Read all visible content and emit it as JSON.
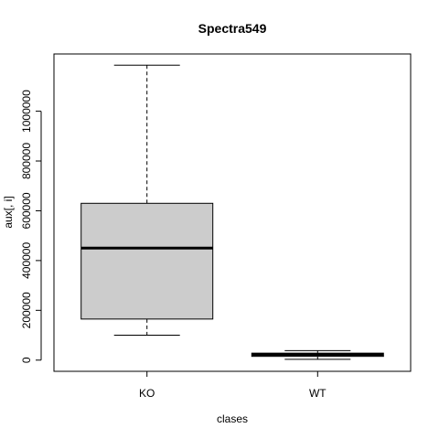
{
  "chart_data": {
    "type": "boxplot",
    "title": "Spectra549",
    "xlabel": "clases",
    "ylabel": "aux[, i]",
    "categories": [
      "KO",
      "WT"
    ],
    "boxes": [
      {
        "name": "KO",
        "min": 100000,
        "q1": 165000,
        "median": 450000,
        "q3": 630000,
        "max": 1185000,
        "fill": "#cccccc"
      },
      {
        "name": "WT",
        "min": 3000,
        "q1": 15000,
        "median": 22000,
        "q3": 28000,
        "max": 38000,
        "fill": "#cccccc"
      }
    ],
    "ylim": [
      -45000,
      1230000
    ],
    "yticks": [
      0,
      200000,
      400000,
      600000,
      800000,
      1000000
    ],
    "ytick_labels": [
      "0",
      "200000",
      "400000",
      "600000",
      "800000",
      "1000000"
    ],
    "grid": false,
    "legend": "none"
  }
}
